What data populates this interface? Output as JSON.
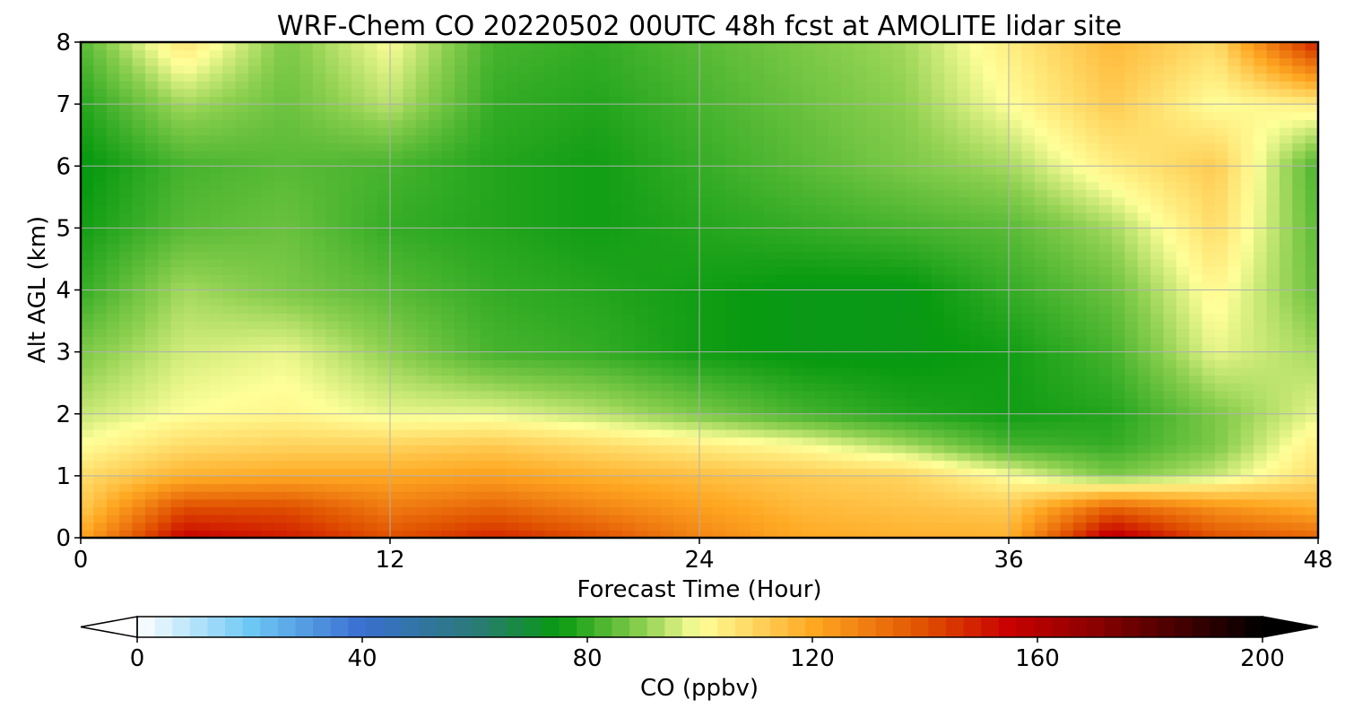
{
  "chart_data": {
    "type": "heatmap",
    "title": "WRF-Chem CO  20220502 00UTC 48h fcst at AMOLITE lidar site",
    "xlabel": "Forecast Time (Hour)",
    "ylabel": "Alt AGL (km)",
    "xlim": [
      0,
      48
    ],
    "ylim": [
      0,
      8
    ],
    "xticks": [
      0,
      12,
      24,
      36,
      48
    ],
    "yticks": [
      0,
      1,
      2,
      3,
      4,
      5,
      6,
      7,
      8
    ],
    "grid": true,
    "x": [
      0,
      4,
      8,
      12,
      16,
      20,
      24,
      28,
      32,
      36,
      40,
      44,
      48
    ],
    "y": [
      0,
      0.5,
      1,
      1.5,
      2,
      3,
      4,
      5,
      6,
      7,
      8
    ],
    "values": [
      [
        120,
        155,
        150,
        140,
        148,
        140,
        128,
        120,
        118,
        118,
        160,
        140,
        135
      ],
      [
        112,
        140,
        140,
        130,
        135,
        128,
        122,
        116,
        114,
        112,
        135,
        125,
        118
      ],
      [
        108,
        118,
        120,
        120,
        122,
        118,
        115,
        112,
        110,
        100,
        88,
        95,
        108
      ],
      [
        100,
        108,
        110,
        110,
        112,
        108,
        104,
        100,
        92,
        82,
        80,
        88,
        104
      ],
      [
        95,
        100,
        102,
        98,
        98,
        94,
        88,
        82,
        78,
        76,
        78,
        88,
        98
      ],
      [
        88,
        96,
        98,
        90,
        82,
        80,
        76,
        74,
        74,
        76,
        82,
        98,
        92
      ],
      [
        80,
        92,
        88,
        84,
        80,
        78,
        76,
        74,
        74,
        80,
        86,
        102,
        86
      ],
      [
        76,
        84,
        86,
        80,
        78,
        76,
        78,
        80,
        82,
        84,
        92,
        108,
        84
      ],
      [
        74,
        82,
        84,
        82,
        78,
        76,
        80,
        84,
        88,
        92,
        104,
        112,
        82
      ],
      [
        78,
        92,
        86,
        94,
        80,
        78,
        82,
        86,
        90,
        100,
        112,
        100,
        104
      ],
      [
        84,
        106,
        88,
        100,
        82,
        80,
        84,
        88,
        92,
        104,
        116,
        108,
        150
      ]
    ],
    "colorbar": {
      "label": "CO  (ppbv)",
      "ticks": [
        0,
        40,
        80,
        120,
        160,
        200
      ],
      "min": 0,
      "max": 200,
      "extend": "both",
      "colors": {
        "0": "#ffffff",
        "20": "#6ec8f5",
        "40": "#3a6fd0",
        "60": "#2a7a78",
        "75": "#089a10",
        "90": "#8ed050",
        "100": "#ffff99",
        "120": "#ffa822",
        "140": "#e05000",
        "155": "#c80000",
        "170": "#8c0000",
        "200": "#000000"
      }
    }
  }
}
